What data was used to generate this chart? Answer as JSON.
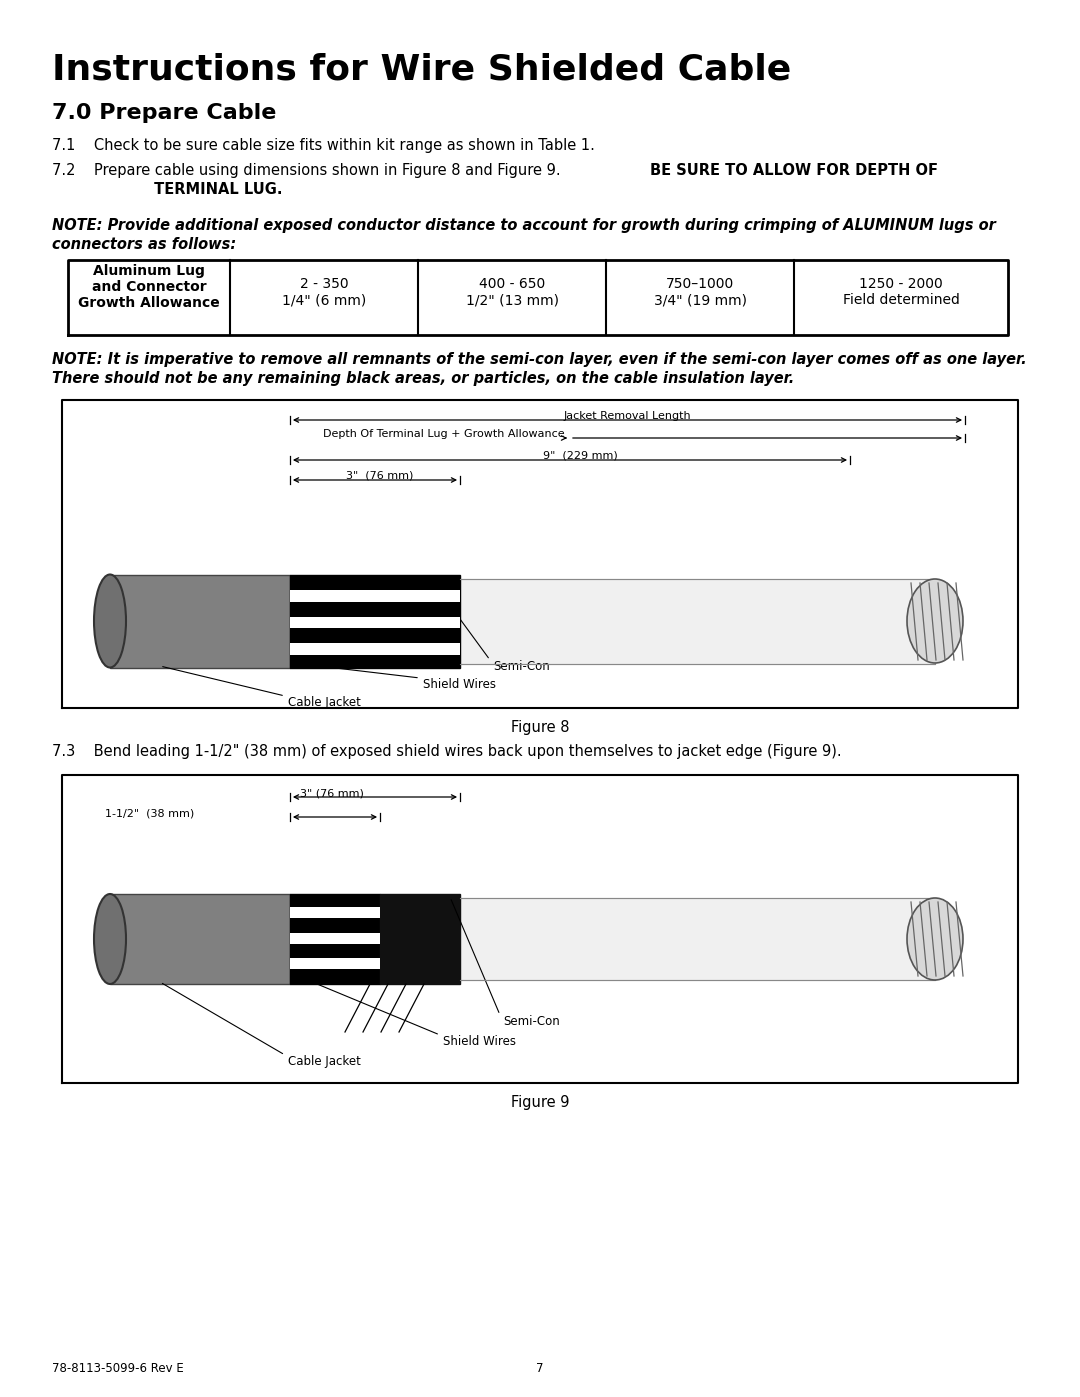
{
  "title": "Instructions for Wire Shielded Cable",
  "section": "7.0 Prepare Cable",
  "item71": "7.1    Check to be sure cable size fits within kit range as shown in Table 1.",
  "item72_part1": "7.2    Prepare cable using dimensions shown in Figure 8 and Figure 9.  ",
  "item72_bold": "BE SURE TO ALLOW FOR DEPTH OF",
  "item72_line2": "         TERMINAL LUG.",
  "note1_line1": "NOTE: Provide additional exposed conductor distance to account for growth during crimping of ALUMINUM lugs or",
  "note1_line2": "connectors as follows:",
  "table_header": "Aluminum Lug\nand Connector\nGrowth Allowance",
  "table_col1": "2 - 350\n1/4\" (6 mm)",
  "table_col2": "400 - 650\n1/2\" (13 mm)",
  "table_col3": "750–1000\n3/4\" (19 mm)",
  "table_col4": "1250 - 2000\nField determined",
  "note2_line1": "NOTE: It is imperative to remove all remnants of the semi-con layer, even if the semi-con layer comes off as one layer.",
  "note2_line2": "There should not be any remaining black areas, or particles, on the cable insulation layer.",
  "dim_jrl": "Jacket Removal Length",
  "dim_dtl": "Depth Of Terminal Lug + Growth Allowance",
  "dim_9in": "9\"  (229 mm)",
  "dim_3in": "3\"  (76 mm)",
  "lbl_semicon": "Semi-Con",
  "lbl_shield": "Shield Wires",
  "lbl_jacket": "Cable Jacket",
  "dim9_3in": "3\" (76 mm)",
  "dim9_1half": "1-1/2\"  (38 mm)",
  "fig8_label": "Figure 8",
  "fig9_label": "Figure 9",
  "item73": "7.3    Bend leading 1-1/2\" (38 mm) of exposed shield wires back upon themselves to jacket edge (Figure 9).",
  "footer_left": "78-8113-5099-6 Rev E",
  "footer_center": "7",
  "bg_color": "#ffffff",
  "text_color": "#000000"
}
